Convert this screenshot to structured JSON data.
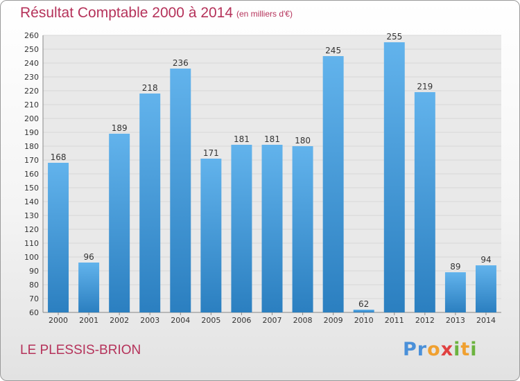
{
  "header": {
    "title": "Résultat Comptable 2000 à 2014",
    "subtitle": "(en milliers d'€)"
  },
  "footer": {
    "town": "LE PLESSIS-BRION",
    "brand": "Proxiti"
  },
  "colors": {
    "title": "#b5325a",
    "bar_light": "#62b3ec",
    "bar_dark": "#2b7fc0",
    "grid": "#d8d8d8"
  },
  "chart_data": {
    "type": "bar",
    "title": "Résultat Comptable 2000 à 2014",
    "subtitle": "(en milliers d'€)",
    "xlabel": "",
    "ylabel": "",
    "categories": [
      "2000",
      "2001",
      "2002",
      "2003",
      "2004",
      "2005",
      "2006",
      "2007",
      "2008",
      "2009",
      "2010",
      "2011",
      "2012",
      "2013",
      "2014"
    ],
    "values": [
      168,
      96,
      189,
      218,
      236,
      171,
      181,
      181,
      180,
      245,
      62,
      255,
      219,
      89,
      94
    ],
    "ylim": [
      60,
      260
    ],
    "ytick_step": 10,
    "grid": true,
    "legend": "none"
  }
}
